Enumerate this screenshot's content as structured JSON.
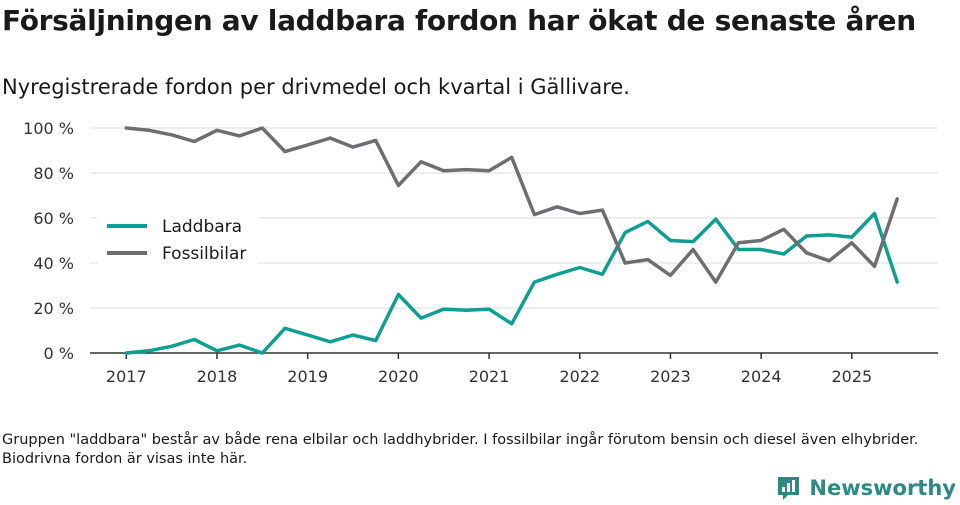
{
  "title": "Försäljningen av laddbara fordon har ökat de senaste åren",
  "subtitle": "Nyregistrerade fordon per drivmedel och kvartal i Gällivare.",
  "footnote": "Gruppen \"laddbara\" består av både rena elbilar och laddhybrider. I fossilbilar ingår förutom bensin och diesel även elhybrider. Biodrivna fordon är visas inte här.",
  "brand": "Newsworthy",
  "colors": {
    "laddbara": "#0f9e92",
    "fossil": "#6e6d72",
    "brand": "#2b8a83"
  },
  "chart_data": {
    "type": "line",
    "title": "Försäljningen av laddbara fordon har ökat de senaste åren",
    "xlabel": "",
    "ylabel": "",
    "x": [
      2017.0,
      2017.25,
      2017.5,
      2017.75,
      2018.0,
      2018.25,
      2018.5,
      2018.75,
      2019.0,
      2019.25,
      2019.5,
      2019.75,
      2020.0,
      2020.25,
      2020.5,
      2020.75,
      2021.0,
      2021.25,
      2021.5,
      2021.75,
      2022.0,
      2022.25,
      2022.5,
      2022.75,
      2023.0,
      2023.25,
      2023.5,
      2023.75,
      2024.0,
      2024.25,
      2024.5,
      2024.75,
      2025.0,
      2025.25,
      2025.5
    ],
    "xlim": [
      2016.6,
      2025.95
    ],
    "ylim": [
      0,
      100
    ],
    "xticks": [
      2017,
      2018,
      2019,
      2020,
      2021,
      2022,
      2023,
      2024,
      2025
    ],
    "yticks": [
      0,
      20,
      40,
      60,
      80,
      100
    ],
    "ytick_labels": [
      "0 %",
      "20 %",
      "40 %",
      "60 %",
      "80 %",
      "100 %"
    ],
    "legend_position": "middle-left",
    "series": [
      {
        "name": "Laddbara",
        "color": "#0f9e92",
        "values": [
          0,
          1,
          3,
          6,
          1,
          3.5,
          0,
          11,
          8,
          5,
          8,
          5.5,
          26,
          15.5,
          19.5,
          19,
          19.5,
          13,
          31.5,
          35,
          38,
          35,
          53.5,
          58.5,
          50,
          49.5,
          59.5,
          46,
          46,
          44,
          52,
          52.5,
          51.5,
          62,
          31.5
        ]
      },
      {
        "name": "Fossilbilar",
        "color": "#6e6d72",
        "values": [
          100,
          99,
          97,
          94,
          99,
          96.5,
          100,
          89.5,
          92.5,
          95.5,
          91.5,
          94.5,
          74.5,
          85,
          81,
          81.5,
          81,
          87,
          61.5,
          65,
          62,
          63.5,
          40,
          41.5,
          34.5,
          46,
          31.5,
          49,
          50,
          55,
          44.5,
          41,
          49,
          38.5,
          68.5
        ]
      }
    ]
  }
}
